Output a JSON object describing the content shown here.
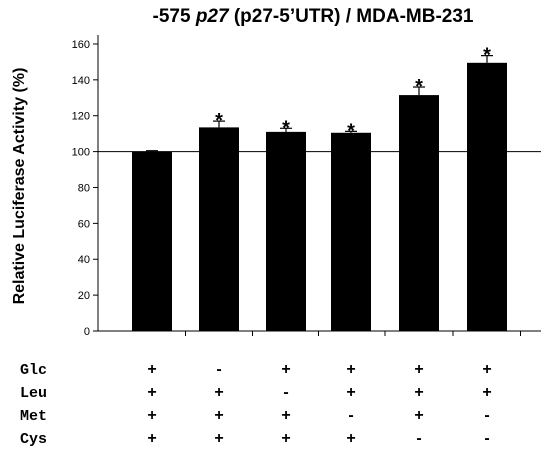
{
  "chart_data": {
    "type": "bar",
    "title_parts": [
      "-575 ",
      "p27",
      " (p27-5’UTR) / MDA-MB-231"
    ],
    "xlabel": "",
    "ylabel": "Relative Luciferase Activity (%)",
    "ylim": [
      0,
      165
    ],
    "yticks": [
      "0",
      "20",
      "40",
      "60",
      "80",
      "100",
      "120",
      "140",
      "160"
    ],
    "reference_line": 100,
    "grid": false,
    "legend": "none",
    "bar_color": "#000000",
    "values": [
      100,
      113.5,
      111,
      110.5,
      131.5,
      149.5
    ],
    "errors": [
      0.5,
      3.5,
      2,
      0.8,
      4.5,
      4
    ],
    "significance": [
      "",
      "*",
      "*",
      "*",
      "*",
      "*"
    ],
    "treatments": [
      {
        "label": "Glc",
        "signs": [
          "+",
          "-",
          "+",
          "+",
          "+",
          "+"
        ]
      },
      {
        "label": "Leu",
        "signs": [
          "+",
          "+",
          "-",
          "+",
          "+",
          "+"
        ]
      },
      {
        "label": "Met",
        "signs": [
          "+",
          "+",
          "+",
          "-",
          "+",
          "-"
        ]
      },
      {
        "label": "Cys",
        "signs": [
          "+",
          "+",
          "+",
          "+",
          "-",
          "-"
        ]
      }
    ]
  }
}
